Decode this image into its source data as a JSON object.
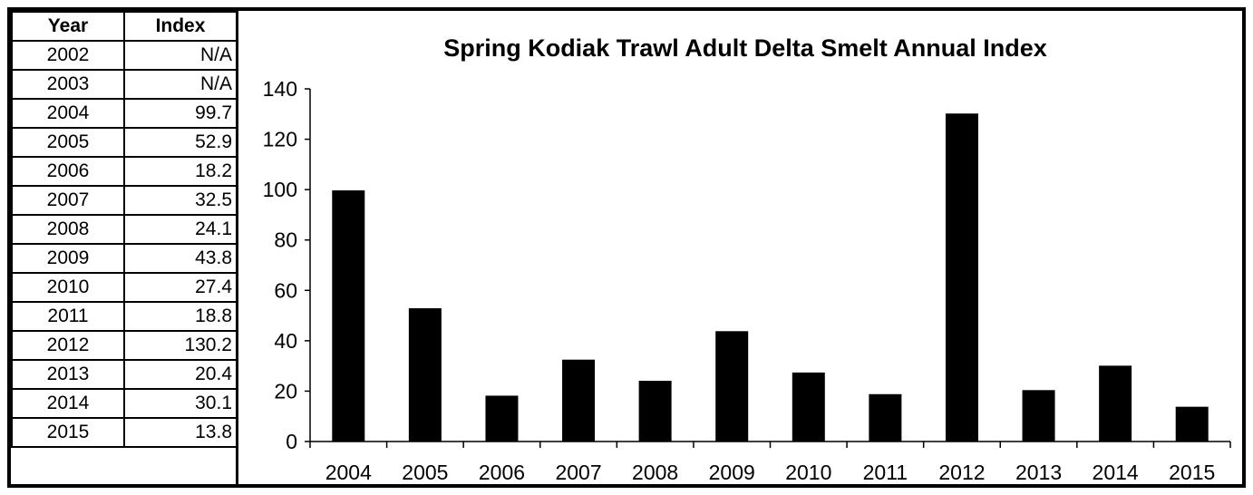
{
  "table": {
    "headers": [
      "Year",
      "Index"
    ],
    "rows": [
      {
        "year": "2002",
        "index": "N/A"
      },
      {
        "year": "2003",
        "index": "N/A"
      },
      {
        "year": "2004",
        "index": "99.7"
      },
      {
        "year": "2005",
        "index": "52.9"
      },
      {
        "year": "2006",
        "index": "18.2"
      },
      {
        "year": "2007",
        "index": "32.5"
      },
      {
        "year": "2008",
        "index": "24.1"
      },
      {
        "year": "2009",
        "index": "43.8"
      },
      {
        "year": "2010",
        "index": "27.4"
      },
      {
        "year": "2011",
        "index": "18.8"
      },
      {
        "year": "2012",
        "index": "130.2"
      },
      {
        "year": "2013",
        "index": "20.4"
      },
      {
        "year": "2014",
        "index": "30.1"
      },
      {
        "year": "2015",
        "index": "13.8"
      }
    ]
  },
  "chart_data": {
    "type": "bar",
    "title": "Spring Kodiak Trawl Adult Delta Smelt Annual Index",
    "xlabel": "",
    "ylabel": "",
    "categories": [
      "2004",
      "2005",
      "2006",
      "2007",
      "2008",
      "2009",
      "2010",
      "2011",
      "2012",
      "2013",
      "2014",
      "2015"
    ],
    "values": [
      99.7,
      52.9,
      18.2,
      32.5,
      24.1,
      43.8,
      27.4,
      18.8,
      130.2,
      20.4,
      30.1,
      13.8
    ],
    "ylim": [
      0,
      140
    ],
    "yticks": [
      "0",
      "20",
      "40",
      "60",
      "80",
      "100",
      "120",
      "140"
    ],
    "bar_color": "#000000",
    "grid": false,
    "legend": "none"
  }
}
